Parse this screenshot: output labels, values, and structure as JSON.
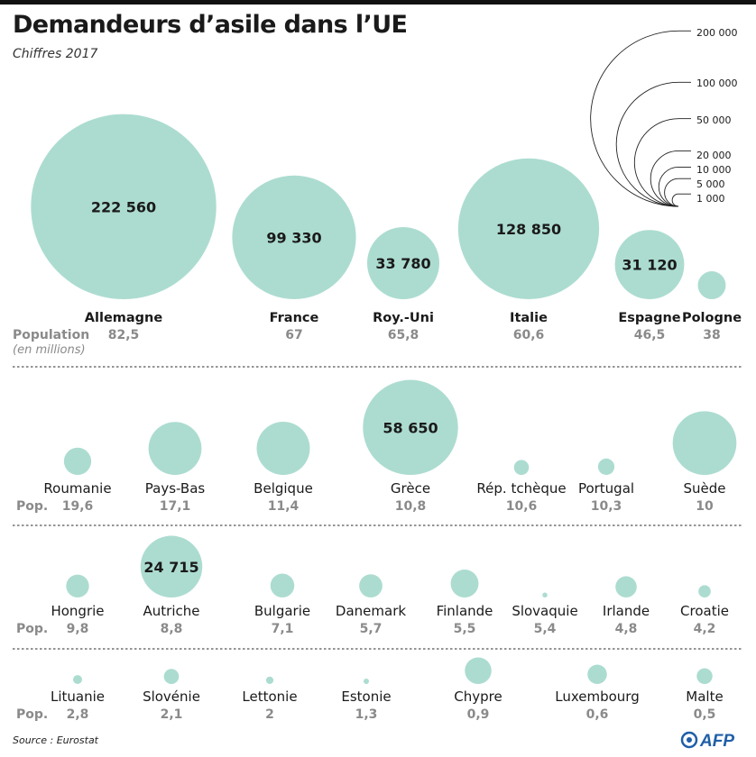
{
  "header": {
    "title": "Demandeurs d’asile dans l’UE",
    "subtitle": "Chiffres 2017"
  },
  "footer": {
    "source": "Source : Eurostat",
    "logo_text": "AFP"
  },
  "colors": {
    "bubble": "#acdcd0",
    "text": "#1a1a1a",
    "muted": "#8a8a8a",
    "divider": "#555555"
  },
  "chart_data": {
    "type": "bubble",
    "title": "Demandeurs d’asile dans l’UE",
    "subtitle": "Chiffres 2017",
    "measure": "Demandeurs d’asile",
    "population_label": "Population",
    "population_unit_label": "(en millions)",
    "population_short_label": "Pop.",
    "legend": {
      "placement": "top-right",
      "values": [
        200000,
        100000,
        50000,
        20000,
        10000,
        5000,
        1000
      ],
      "labels": [
        "200 000",
        "100 000",
        "50 000",
        "20 000",
        "10 000",
        "5 000",
        "1 000"
      ]
    },
    "rows": [
      {
        "countries": [
          {
            "name": "Allemagne",
            "value": 222560,
            "value_label": "222 560",
            "population": "82,5"
          },
          {
            "name": "France",
            "value": 99330,
            "value_label": "99 330",
            "population": "67"
          },
          {
            "name": "Roy.-Uni",
            "value": 33780,
            "value_label": "33 780",
            "population": "65,8"
          },
          {
            "name": "Italie",
            "value": 128850,
            "value_label": "128 850",
            "population": "60,6"
          },
          {
            "name": "Espagne",
            "value": 31120,
            "value_label": "31 120",
            "population": "46,5"
          },
          {
            "name": "Pologne",
            "value": 5050,
            "value_label": "",
            "population": "38"
          }
        ]
      },
      {
        "countries": [
          {
            "name": "Roumanie",
            "value": 4820,
            "value_label": "",
            "population": "19,6"
          },
          {
            "name": "Pays-Bas",
            "value": 18210,
            "value_label": "",
            "population": "17,1"
          },
          {
            "name": "Belgique",
            "value": 18340,
            "value_label": "",
            "population": "11,4"
          },
          {
            "name": "Grèce",
            "value": 58650,
            "value_label": "58 650",
            "population": "10,8"
          },
          {
            "name": "Rép. tchèque",
            "value": 1450,
            "value_label": "",
            "population": "10,6"
          },
          {
            "name": "Portugal",
            "value": 1750,
            "value_label": "",
            "population": "10,3"
          },
          {
            "name": "Suède",
            "value": 26325,
            "value_label": "",
            "population": "10"
          }
        ]
      },
      {
        "countries": [
          {
            "name": "Hongrie",
            "value": 3390,
            "value_label": "",
            "population": "9,8"
          },
          {
            "name": "Autriche",
            "value": 24715,
            "value_label": "24 715",
            "population": "8,8"
          },
          {
            "name": "Bulgarie",
            "value": 3700,
            "value_label": "",
            "population": "7,1"
          },
          {
            "name": "Danemark",
            "value": 3500,
            "value_label": "",
            "population": "5,7"
          },
          {
            "name": "Finlande",
            "value": 5050,
            "value_label": "",
            "population": "5,5"
          },
          {
            "name": "Slovaquie",
            "value": 160,
            "value_label": "",
            "population": "5,4"
          },
          {
            "name": "Irlande",
            "value": 2930,
            "value_label": "",
            "population": "4,8"
          },
          {
            "name": "Croatie",
            "value": 975,
            "value_label": "",
            "population": "4,2"
          }
        ]
      },
      {
        "countries": [
          {
            "name": "Lituanie",
            "value": 520,
            "value_label": "",
            "population": "2,8"
          },
          {
            "name": "Slovénie",
            "value": 1475,
            "value_label": "",
            "population": "2,1"
          },
          {
            "name": "Lettonie",
            "value": 355,
            "value_label": "",
            "population": "2"
          },
          {
            "name": "Estonie",
            "value": 190,
            "value_label": "",
            "population": "1,3"
          },
          {
            "name": "Chypre",
            "value": 4600,
            "value_label": "",
            "population": "0,9"
          },
          {
            "name": "Luxembourg",
            "value": 2430,
            "value_label": "",
            "population": "0,6"
          },
          {
            "name": "Malte",
            "value": 1610,
            "value_label": "",
            "population": "0,5"
          }
        ]
      }
    ]
  }
}
